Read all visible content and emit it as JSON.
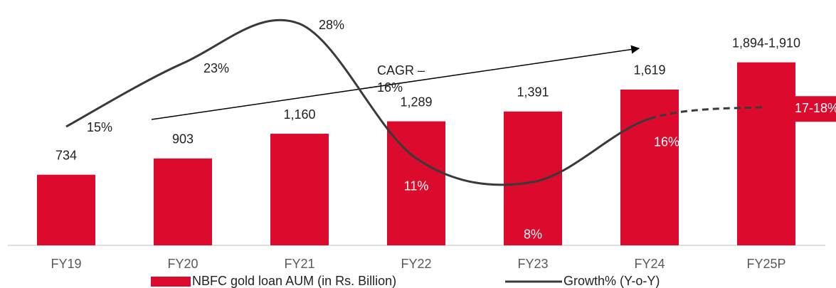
{
  "chart_data": {
    "type": "bar_line",
    "categories": [
      "FY19",
      "FY20",
      "FY21",
      "FY22",
      "FY23",
      "FY24",
      "FY25P"
    ],
    "series": [
      {
        "name": "NBFC gold loan AUM (in Rs. Billion)",
        "type": "bar",
        "color": "#dc0a2d",
        "values": [
          734,
          903,
          1160,
          1289,
          1391,
          1619,
          1902
        ],
        "value_labels": [
          "734",
          "903",
          "1,160",
          "1,289",
          "1,391",
          "1,619",
          "1,894-1,910"
        ]
      },
      {
        "name": "Growth% (Y-o-Y)",
        "type": "line",
        "axis": "y2",
        "color": "#3a3a3a",
        "values": [
          15,
          23,
          28,
          11,
          8,
          16,
          17.5
        ],
        "value_labels": [
          "15%",
          "23%",
          "28%",
          "11%",
          "8%",
          "16%",
          "17-18%"
        ]
      }
    ],
    "ylim": [
      0,
      2550
    ],
    "y2lim": [
      0,
      31
    ],
    "annotation": [
      "CAGR –",
      "16%"
    ],
    "legend": "bottom"
  }
}
